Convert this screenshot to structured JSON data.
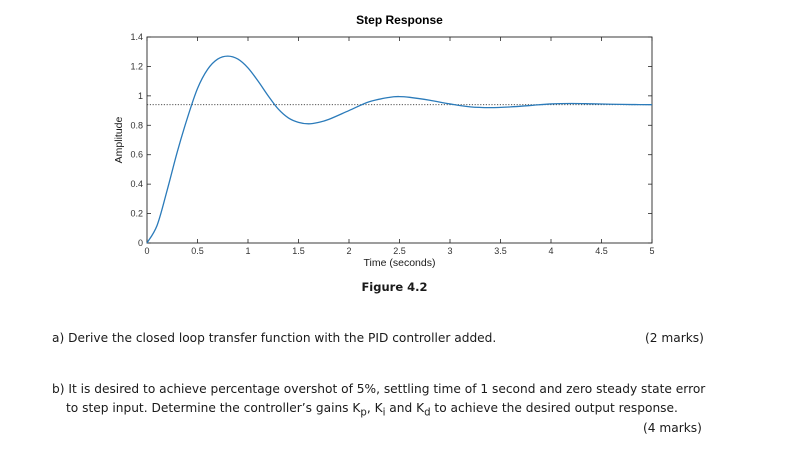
{
  "chart_data": {
    "type": "line",
    "title": "Step Response",
    "xlabel": "Time (seconds)",
    "ylabel": "Amplitude",
    "xlim": [
      0,
      5
    ],
    "ylim": [
      0,
      1.4
    ],
    "xticks": [
      0,
      0.5,
      1,
      1.5,
      2,
      2.5,
      3,
      3.5,
      4,
      4.5,
      5
    ],
    "xtick_labels": [
      "0",
      "0.5",
      "1",
      "1.5",
      "2",
      "2.5",
      "3",
      "3.5",
      "4",
      "4.5",
      "5"
    ],
    "yticks": [
      0,
      0.2,
      0.4,
      0.6,
      0.8,
      1,
      1.2,
      1.4
    ],
    "ytick_labels": [
      "0",
      "0.2",
      "0.4",
      "0.6",
      "0.8",
      "1",
      "1.2",
      "1.4"
    ],
    "grid": false,
    "steady_state_line": 0.94,
    "series": [
      {
        "color": "#2b7bba",
        "x": [
          0,
          0.1,
          0.2,
          0.3,
          0.4,
          0.5,
          0.6,
          0.7,
          0.8,
          0.9,
          1.0,
          1.1,
          1.2,
          1.3,
          1.4,
          1.5,
          1.6,
          1.7,
          1.8,
          2.0,
          2.2,
          2.4,
          2.5,
          2.6,
          2.8,
          3.0,
          3.2,
          3.4,
          3.6,
          3.8,
          4.0,
          4.2,
          4.4,
          4.6,
          4.8,
          5.0
        ],
        "y": [
          0,
          0.12,
          0.36,
          0.62,
          0.85,
          1.05,
          1.18,
          1.25,
          1.27,
          1.25,
          1.19,
          1.1,
          1.0,
          0.91,
          0.85,
          0.82,
          0.81,
          0.82,
          0.84,
          0.9,
          0.96,
          0.99,
          0.995,
          0.99,
          0.97,
          0.945,
          0.925,
          0.92,
          0.925,
          0.935,
          0.945,
          0.948,
          0.946,
          0.943,
          0.941,
          0.94
        ]
      }
    ]
  },
  "caption": "Figure 4.2",
  "questions": {
    "a_text": "a)  Derive the closed loop transfer function with the PID controller added.",
    "a_marks": "(2 marks)",
    "b_line1": "b)  It is desired to achieve percentage overshot of 5%, settling time of 1 second and zero steady state error",
    "b_line2_pre": "to step input. Determine the controller’s gains K",
    "kp_sub": "p",
    "b_sep1": ", K",
    "ki_sub": "i",
    "b_sep2": " and K",
    "kd_sub": "d",
    "b_line2_post": " to achieve the desired output response.",
    "b_marks": "(4 marks)"
  },
  "colors": {
    "line": "#2b7bba",
    "axis": "#262626",
    "reference": "#3a3a3a"
  }
}
